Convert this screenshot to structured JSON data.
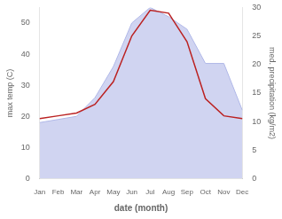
{
  "chart_data": {
    "type": "line",
    "categories": [
      "Jan",
      "Feb",
      "Mar",
      "Apr",
      "May",
      "Jun",
      "Jul",
      "Aug",
      "Sep",
      "Oct",
      "Nov",
      "Dec"
    ],
    "xlabel": "date (month)",
    "ylabel": "max temp (C)",
    "y2label": "med. precipitation (kg/m2)",
    "series": [
      {
        "type": "area",
        "color": "#b0b8e8",
        "values": [
          18,
          19,
          20,
          26,
          36,
          50,
          55,
          52,
          48,
          37,
          37,
          22
        ]
      },
      {
        "type": "line",
        "color": "#bb2222",
        "axis": "y2",
        "values": [
          10.5,
          11,
          11.5,
          13,
          17,
          25,
          29.5,
          29,
          24,
          14,
          11,
          10.5
        ]
      }
    ],
    "ylim": [
      0,
      55
    ],
    "yticks": [
      0,
      10,
      20,
      30,
      40,
      50
    ],
    "y2lim": [
      0,
      30
    ],
    "y2ticks": [
      0,
      5,
      10,
      15,
      20,
      25,
      30
    ],
    "grid": false
  }
}
